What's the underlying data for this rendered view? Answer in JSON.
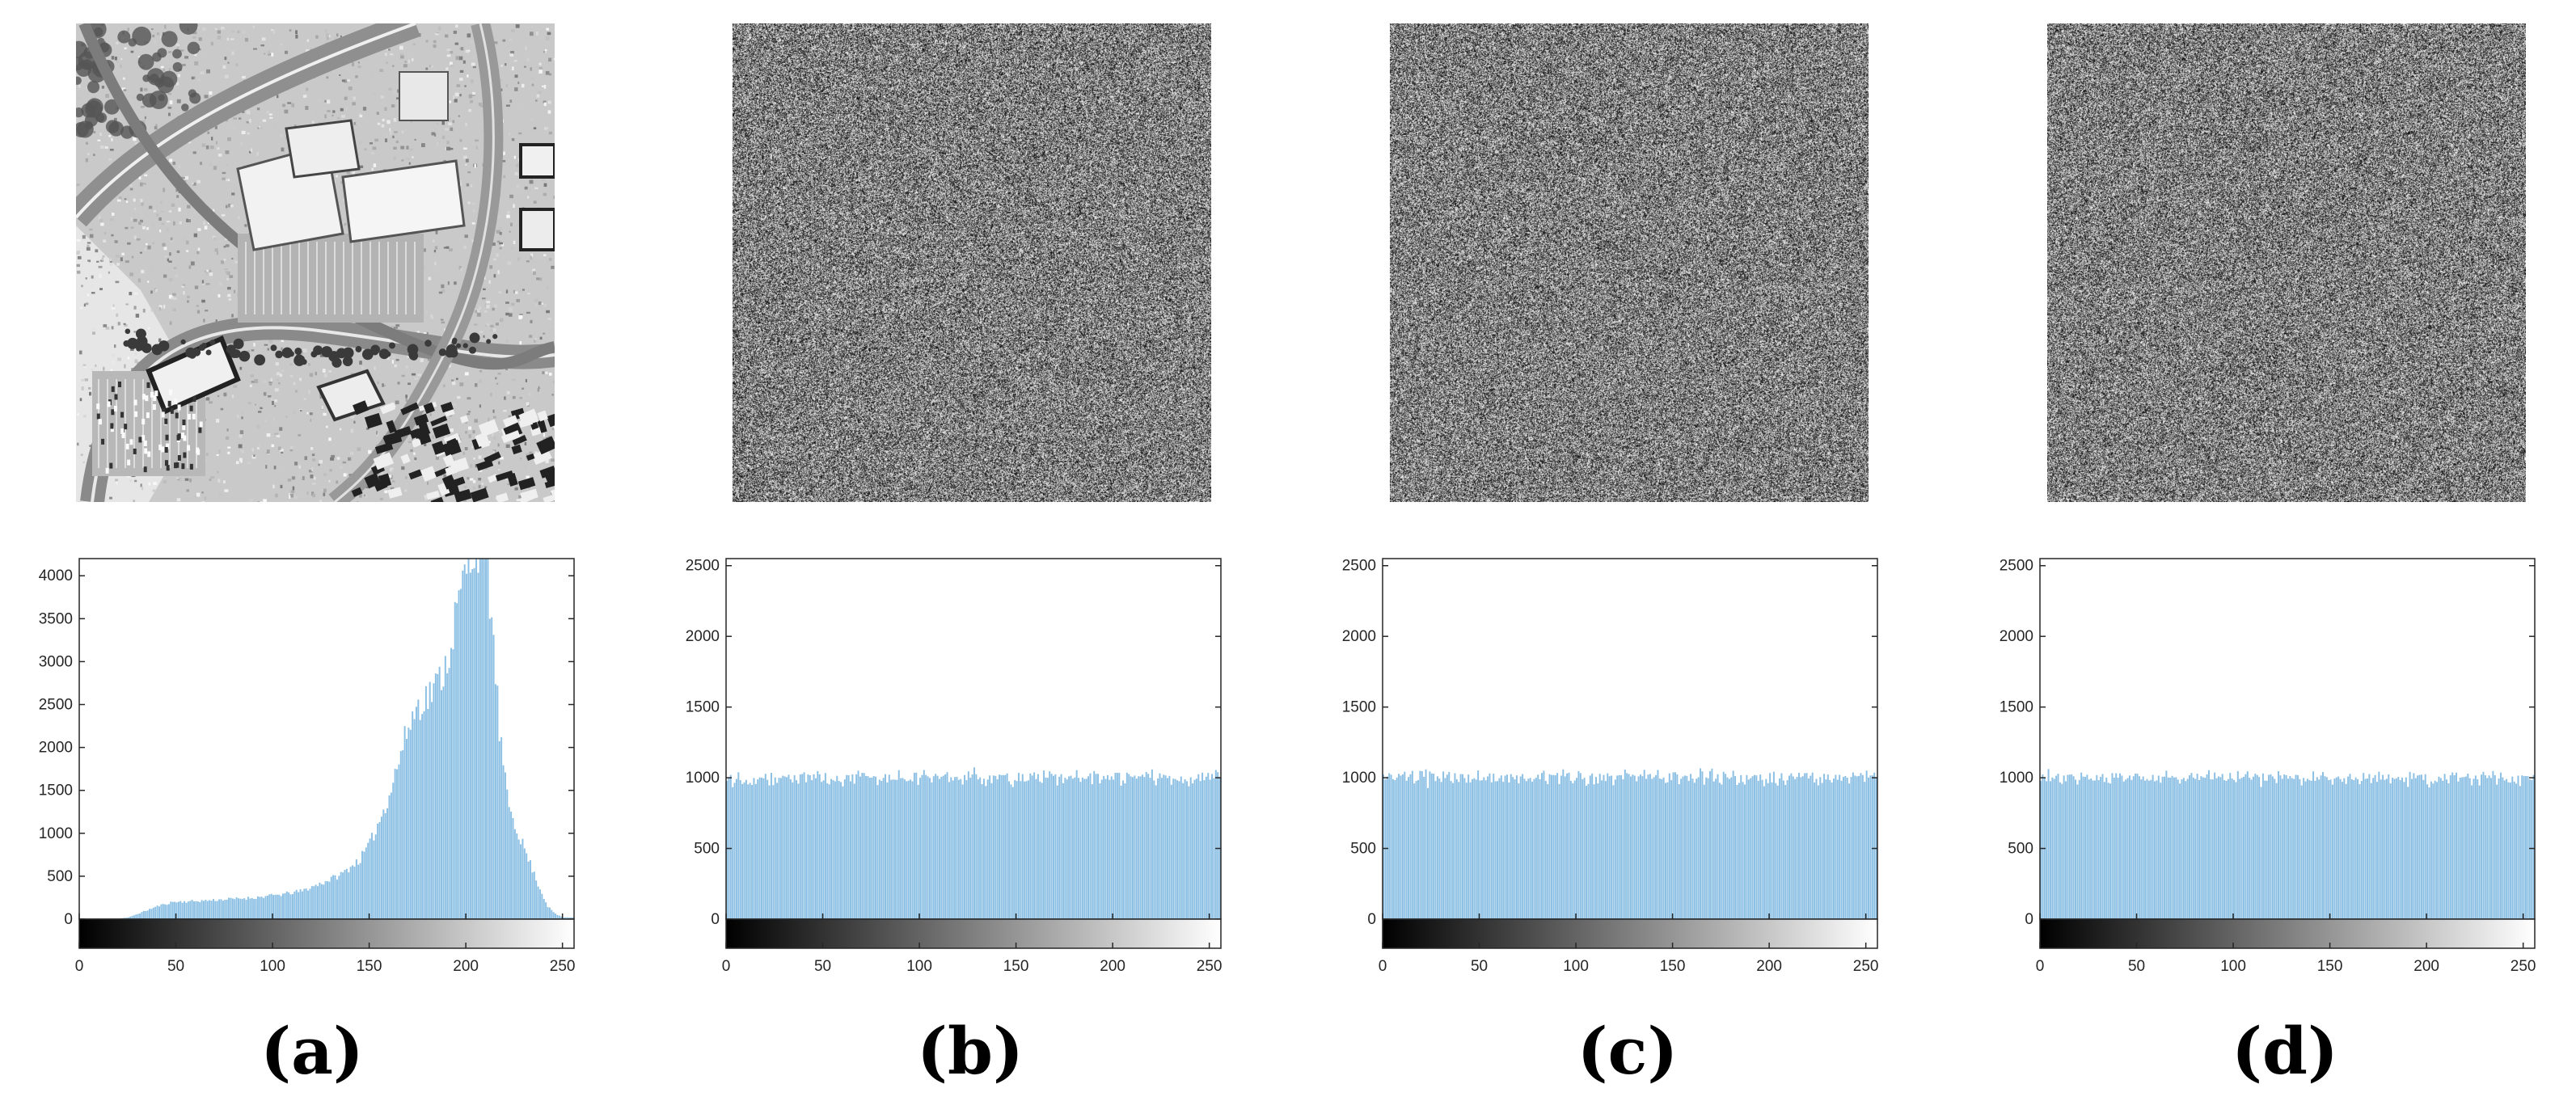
{
  "figure": {
    "panels": [
      {
        "id": "a",
        "caption": "(a)",
        "image": {
          "kind": "aerial-photo",
          "description_icon": "aerial-photo-image"
        }
      },
      {
        "id": "b",
        "caption": "(b)",
        "image": {
          "kind": "noise",
          "description_icon": "encrypted-noise-image"
        }
      },
      {
        "id": "c",
        "caption": "(c)",
        "image": {
          "kind": "noise",
          "description_icon": "encrypted-noise-image"
        }
      },
      {
        "id": "d",
        "caption": "(d)",
        "image": {
          "kind": "noise",
          "description_icon": "encrypted-noise-image"
        }
      }
    ],
    "colors": {
      "bar": "#8bbfe3",
      "bar_edge": "#5b9bd5",
      "axis": "#262626",
      "text": "#262626"
    }
  },
  "chart_data": [
    {
      "type": "bar",
      "panel": "a",
      "title": "",
      "xlabel": "",
      "ylabel": "",
      "xlim": [
        0,
        255
      ],
      "ylim": [
        0,
        4200
      ],
      "xticks": [
        "0",
        "50",
        "100",
        "150",
        "200",
        "250"
      ],
      "yticks": [
        "0",
        "500",
        "1000",
        "1500",
        "2000",
        "2500",
        "3000",
        "3500",
        "4000"
      ],
      "colorbar": "grayscale 0-255 below x-axis",
      "grid": false,
      "profile": [
        [
          0,
          0
        ],
        [
          18,
          0
        ],
        [
          25,
          20
        ],
        [
          32,
          80
        ],
        [
          40,
          150
        ],
        [
          48,
          200
        ],
        [
          60,
          210
        ],
        [
          75,
          230
        ],
        [
          90,
          250
        ],
        [
          105,
          290
        ],
        [
          115,
          330
        ],
        [
          125,
          420
        ],
        [
          135,
          520
        ],
        [
          145,
          700
        ],
        [
          150,
          880
        ],
        [
          155,
          1150
        ],
        [
          160,
          1450
        ],
        [
          165,
          1850
        ],
        [
          170,
          2250
        ],
        [
          175,
          2500
        ],
        [
          180,
          2600
        ],
        [
          185,
          2750
        ],
        [
          190,
          3000
        ],
        [
          195,
          3600
        ],
        [
          200,
          4100
        ],
        [
          205,
          4400
        ],
        [
          210,
          4300
        ],
        [
          213,
          3500
        ],
        [
          217,
          2200
        ],
        [
          221,
          1400
        ],
        [
          226,
          1050
        ],
        [
          232,
          700
        ],
        [
          238,
          350
        ],
        [
          242,
          150
        ],
        [
          246,
          60
        ],
        [
          250,
          20
        ],
        [
          255,
          20
        ]
      ]
    },
    {
      "type": "bar",
      "panel": "b",
      "title": "",
      "xlabel": "",
      "ylabel": "",
      "xlim": [
        0,
        255
      ],
      "ylim": [
        0,
        2550
      ],
      "xticks": [
        "0",
        "50",
        "100",
        "150",
        "200",
        "250"
      ],
      "yticks": [
        "0",
        "500",
        "1000",
        "1500",
        "2000",
        "2500"
      ],
      "colorbar": "grayscale 0-255 below x-axis",
      "grid": false,
      "mean": 1000,
      "spread": 45
    },
    {
      "type": "bar",
      "panel": "c",
      "title": "",
      "xlabel": "",
      "ylabel": "",
      "xlim": [
        0,
        255
      ],
      "ylim": [
        0,
        2550
      ],
      "xticks": [
        "0",
        "50",
        "100",
        "150",
        "200",
        "250"
      ],
      "yticks": [
        "0",
        "500",
        "1000",
        "1500",
        "2000",
        "2500"
      ],
      "colorbar": "grayscale 0-255 below x-axis",
      "grid": false,
      "mean": 1000,
      "spread": 45
    },
    {
      "type": "bar",
      "panel": "d",
      "title": "",
      "xlabel": "",
      "ylabel": "",
      "xlim": [
        0,
        255
      ],
      "ylim": [
        0,
        2550
      ],
      "xticks": [
        "0",
        "50",
        "100",
        "150",
        "200",
        "250"
      ],
      "yticks": [
        "0",
        "500",
        "1000",
        "1500",
        "2000",
        "2500"
      ],
      "colorbar": "grayscale 0-255 below x-axis",
      "grid": false,
      "mean": 1000,
      "spread": 45
    }
  ]
}
